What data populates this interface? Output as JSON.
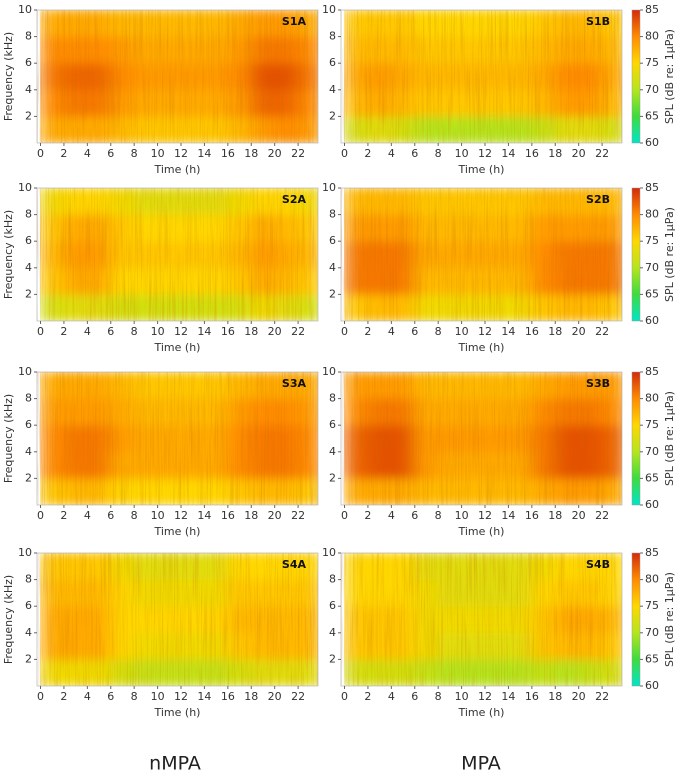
{
  "chart_data": [
    {
      "type": "heatmap",
      "label": "S1A",
      "xlabel": "Time (h)",
      "ylabel": "Frequency (kHz)",
      "xlim": [
        -0.3,
        23.7
      ],
      "ylim": [
        0,
        10
      ],
      "xticks": [
        0,
        2,
        4,
        6,
        8,
        10,
        12,
        14,
        16,
        18,
        20,
        22
      ],
      "yticks": [
        2,
        4,
        6,
        8,
        10
      ],
      "x_edges": [
        0,
        2,
        4,
        6,
        8,
        10,
        12,
        14,
        16,
        18,
        20,
        22,
        24
      ],
      "y_edges": [
        0,
        2,
        4,
        6,
        8,
        10
      ],
      "z": [
        [
          78,
          78,
          78,
          77,
          76,
          76,
          76,
          76,
          77,
          79,
          80,
          79
        ],
        [
          80,
          81,
          81,
          79,
          78,
          78,
          78,
          78,
          79,
          82,
          82,
          80
        ],
        [
          81,
          82,
          82,
          80,
          79,
          79,
          79,
          79,
          80,
          83,
          83,
          81
        ],
        [
          80,
          80,
          80,
          79,
          78,
          78,
          78,
          78,
          79,
          81,
          81,
          80
        ],
        [
          78,
          78,
          78,
          77,
          77,
          77,
          77,
          77,
          78,
          79,
          79,
          78
        ]
      ]
    },
    {
      "type": "heatmap",
      "label": "S1B",
      "xlabel": "Time (h)",
      "xlim": [
        -0.3,
        23.7
      ],
      "ylim": [
        0,
        10
      ],
      "xticks": [
        0,
        2,
        4,
        6,
        8,
        10,
        12,
        14,
        16,
        18,
        20,
        22
      ],
      "yticks": [
        2,
        4,
        6,
        8,
        10
      ],
      "x_edges": [
        0,
        2,
        4,
        6,
        8,
        10,
        12,
        14,
        16,
        18,
        20,
        22,
        24
      ],
      "y_edges": [
        0,
        2,
        4,
        6,
        8,
        10
      ],
      "z": [
        [
          72,
          73,
          72,
          70,
          70,
          70,
          70,
          70,
          71,
          73,
          73,
          72
        ],
        [
          77,
          78,
          77,
          76,
          76,
          76,
          76,
          76,
          77,
          79,
          79,
          77
        ],
        [
          78,
          79,
          78,
          77,
          77,
          77,
          77,
          77,
          78,
          80,
          80,
          78
        ],
        [
          77,
          77,
          77,
          76,
          76,
          76,
          76,
          76,
          77,
          78,
          78,
          77
        ],
        [
          76,
          76,
          76,
          75,
          75,
          75,
          75,
          75,
          76,
          77,
          77,
          76
        ]
      ],
      "colorbar": {
        "label": "SPL (dB re: 1µPa)",
        "lim": [
          60,
          85
        ],
        "ticks": [
          60,
          65,
          70,
          75,
          80,
          85
        ],
        "colorscale": [
          "#00e5c8",
          "#3ddc3d",
          "#b5e51d",
          "#ffd700",
          "#ff8c00",
          "#d42a0a"
        ]
      }
    },
    {
      "type": "heatmap",
      "label": "S2A",
      "xlabel": "Time (h)",
      "ylabel": "Frequency (kHz)",
      "xlim": [
        -0.3,
        23.7
      ],
      "ylim": [
        0,
        10
      ],
      "xticks": [
        0,
        2,
        4,
        6,
        8,
        10,
        12,
        14,
        16,
        18,
        20,
        22
      ],
      "yticks": [
        2,
        4,
        6,
        8,
        10
      ],
      "x_edges": [
        0,
        2,
        4,
        6,
        8,
        10,
        12,
        14,
        16,
        18,
        20,
        22,
        24
      ],
      "y_edges": [
        0,
        2,
        4,
        6,
        8,
        10
      ],
      "z": [
        [
          72,
          73,
          73,
          72,
          72,
          72,
          72,
          72,
          72,
          74,
          73,
          72
        ],
        [
          76,
          78,
          78,
          75,
          75,
          75,
          75,
          75,
          76,
          78,
          77,
          76
        ],
        [
          77,
          79,
          79,
          76,
          76,
          76,
          76,
          76,
          77,
          79,
          78,
          77
        ],
        [
          76,
          78,
          78,
          76,
          75,
          75,
          75,
          75,
          76,
          78,
          77,
          76
        ],
        [
          74,
          75,
          75,
          74,
          73,
          73,
          73,
          73,
          74,
          75,
          75,
          74
        ]
      ]
    },
    {
      "type": "heatmap",
      "label": "S2B",
      "xlabel": "Time (h)",
      "xlim": [
        -0.3,
        23.7
      ],
      "ylim": [
        0,
        10
      ],
      "xticks": [
        0,
        2,
        4,
        6,
        8,
        10,
        12,
        14,
        16,
        18,
        20,
        22
      ],
      "yticks": [
        2,
        4,
        6,
        8,
        10
      ],
      "x_edges": [
        0,
        2,
        4,
        6,
        8,
        10,
        12,
        14,
        16,
        18,
        20,
        22,
        24
      ],
      "y_edges": [
        0,
        2,
        4,
        6,
        8,
        10
      ],
      "z": [
        [
          76,
          77,
          77,
          74,
          74,
          74,
          74,
          74,
          76,
          77,
          77,
          76
        ],
        [
          81,
          81,
          81,
          77,
          77,
          77,
          77,
          77,
          80,
          81,
          81,
          81
        ],
        [
          81,
          81,
          81,
          78,
          78,
          78,
          78,
          78,
          80,
          81,
          81,
          81
        ],
        [
          79,
          79,
          79,
          77,
          77,
          77,
          77,
          77,
          79,
          79,
          79,
          79
        ],
        [
          77,
          77,
          77,
          76,
          76,
          76,
          76,
          76,
          77,
          77,
          77,
          77
        ]
      ],
      "colorbar": {
        "label": "SPL (dB re: 1µPa)",
        "lim": [
          60,
          85
        ],
        "ticks": [
          60,
          65,
          70,
          75,
          80,
          85
        ],
        "colorscale": [
          "#00e5c8",
          "#3ddc3d",
          "#b5e51d",
          "#ffd700",
          "#ff8c00",
          "#d42a0a"
        ]
      }
    },
    {
      "type": "heatmap",
      "label": "S3A",
      "xlabel": "Time (h)",
      "ylabel": "Frequency (kHz)",
      "xlim": [
        -0.3,
        23.7
      ],
      "ylim": [
        0,
        10
      ],
      "xticks": [
        0,
        2,
        4,
        6,
        8,
        10,
        12,
        14,
        16,
        18,
        20,
        22
      ],
      "yticks": [
        2,
        4,
        6,
        8,
        10
      ],
      "x_edges": [
        0,
        2,
        4,
        6,
        8,
        10,
        12,
        14,
        16,
        18,
        20,
        22,
        24
      ],
      "y_edges": [
        0,
        2,
        4,
        6,
        8,
        10
      ],
      "z": [
        [
          76,
          77,
          77,
          75,
          75,
          75,
          75,
          75,
          76,
          77,
          77,
          76
        ],
        [
          80,
          81,
          81,
          78,
          78,
          78,
          78,
          78,
          80,
          81,
          81,
          80
        ],
        [
          80,
          81,
          81,
          79,
          78,
          78,
          78,
          78,
          80,
          81,
          81,
          80
        ],
        [
          79,
          79,
          79,
          78,
          77,
          77,
          77,
          77,
          79,
          80,
          80,
          79
        ],
        [
          78,
          78,
          78,
          77,
          76,
          76,
          76,
          76,
          77,
          78,
          78,
          78
        ]
      ]
    },
    {
      "type": "heatmap",
      "label": "S3B",
      "xlabel": "Time (h)",
      "xlim": [
        -0.3,
        23.7
      ],
      "ylim": [
        0,
        10
      ],
      "xticks": [
        0,
        2,
        4,
        6,
        8,
        10,
        12,
        14,
        16,
        18,
        20,
        22
      ],
      "yticks": [
        2,
        4,
        6,
        8,
        10
      ],
      "x_edges": [
        0,
        2,
        4,
        6,
        8,
        10,
        12,
        14,
        16,
        18,
        20,
        22,
        24
      ],
      "y_edges": [
        0,
        2,
        4,
        6,
        8,
        10
      ],
      "z": [
        [
          78,
          78,
          78,
          77,
          77,
          77,
          77,
          77,
          78,
          79,
          79,
          78
        ],
        [
          82,
          83,
          83,
          79,
          78,
          78,
          78,
          78,
          81,
          83,
          83,
          82
        ],
        [
          82,
          83,
          83,
          79,
          79,
          79,
          79,
          79,
          81,
          83,
          83,
          82
        ],
        [
          80,
          81,
          81,
          78,
          78,
          78,
          78,
          78,
          80,
          81,
          81,
          80
        ],
        [
          79,
          79,
          79,
          77,
          77,
          77,
          77,
          77,
          78,
          79,
          79,
          79
        ]
      ],
      "colorbar": {
        "label": "SPL (dB re: 1µPa)",
        "lim": [
          60,
          85
        ],
        "ticks": [
          60,
          65,
          70,
          75,
          80,
          85
        ],
        "colorscale": [
          "#00e5c8",
          "#3ddc3d",
          "#b5e51d",
          "#ffd700",
          "#ff8c00",
          "#d42a0a"
        ]
      }
    },
    {
      "type": "heatmap",
      "label": "S4A",
      "xlabel": "Time (h)",
      "ylabel": "Frequency (kHz)",
      "xlim": [
        -0.3,
        23.7
      ],
      "ylim": [
        0,
        10
      ],
      "xticks": [
        0,
        2,
        4,
        6,
        8,
        10,
        12,
        14,
        16,
        18,
        20,
        22
      ],
      "yticks": [
        2,
        4,
        6,
        8,
        10
      ],
      "x_edges": [
        0,
        2,
        4,
        6,
        8,
        10,
        12,
        14,
        16,
        18,
        20,
        22,
        24
      ],
      "y_edges": [
        0,
        2,
        4,
        6,
        8,
        10
      ],
      "z": [
        [
          74,
          74,
          74,
          72,
          71,
          71,
          71,
          71,
          72,
          73,
          73,
          73
        ],
        [
          78,
          78,
          78,
          75,
          74,
          74,
          74,
          74,
          76,
          77,
          77,
          77
        ],
        [
          78,
          78,
          78,
          75,
          75,
          75,
          75,
          75,
          77,
          77,
          77,
          77
        ],
        [
          77,
          77,
          77,
          75,
          74,
          74,
          74,
          74,
          76,
          76,
          76,
          76
        ],
        [
          76,
          76,
          76,
          74,
          73,
          73,
          73,
          73,
          75,
          75,
          75,
          75
        ]
      ]
    },
    {
      "type": "heatmap",
      "label": "S4B",
      "xlabel": "Time (h)",
      "xlim": [
        -0.3,
        23.7
      ],
      "ylim": [
        0,
        10
      ],
      "xticks": [
        0,
        2,
        4,
        6,
        8,
        10,
        12,
        14,
        16,
        18,
        20,
        22
      ],
      "yticks": [
        2,
        4,
        6,
        8,
        10
      ],
      "x_edges": [
        0,
        2,
        4,
        6,
        8,
        10,
        12,
        14,
        16,
        18,
        20,
        22,
        24
      ],
      "y_edges": [
        0,
        2,
        4,
        6,
        8,
        10
      ],
      "z": [
        [
          72,
          72,
          72,
          71,
          70,
          70,
          70,
          70,
          71,
          70,
          71,
          72
        ],
        [
          76,
          76,
          76,
          74,
          73,
          73,
          73,
          73,
          76,
          77,
          77,
          76
        ],
        [
          76,
          76,
          76,
          74,
          74,
          74,
          74,
          74,
          76,
          78,
          78,
          77
        ],
        [
          75,
          75,
          75,
          74,
          73,
          73,
          73,
          73,
          75,
          76,
          76,
          75
        ],
        [
          75,
          75,
          75,
          73,
          73,
          73,
          73,
          73,
          74,
          75,
          75,
          75
        ]
      ],
      "colorbar": {
        "label": "SPL (dB re: 1µPa)",
        "lim": [
          60,
          85
        ],
        "ticks": [
          60,
          65,
          70,
          75,
          80,
          85
        ],
        "colorscale": [
          "#00e5c8",
          "#3ddc3d",
          "#b5e51d",
          "#ffd700",
          "#ff8c00",
          "#d42a0a"
        ]
      }
    }
  ],
  "column_labels": [
    "nMPA",
    "MPA"
  ]
}
